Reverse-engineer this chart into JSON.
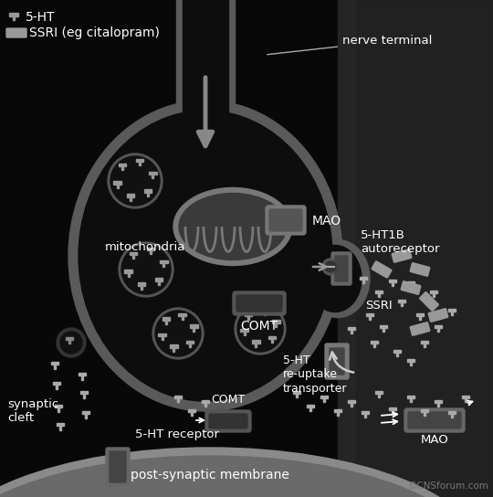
{
  "bg_color": "#080808",
  "text_color": "#ffffff",
  "gray_text": "#cccccc",
  "terminal_border": "#666666",
  "terminal_fill": "#0d0d0d",
  "mito_outer": "#707070",
  "mito_inner": "#3a3a3a",
  "vesicle_border": "#555555",
  "vesicle_fill": "#111111",
  "ht_marker": "#999999",
  "ssri_color": "#888888",
  "membrane_color": "#aaaaaa",
  "post_mem_color": "#b0b0b0",
  "arrow_color": "#999999",
  "right_bg": "#2a2a2a",
  "figsize": [
    5.4,
    5.44
  ],
  "dpi": 100,
  "legend_items": [
    "5-HT",
    "SSRI (eg citalopram)"
  ],
  "labels": {
    "nerve_terminal": "nerve terminal",
    "mitochondria": "mitochondria",
    "MAO_top": "MAO",
    "COMT_inner": "COMT",
    "ht1b": "5-HT1B\nautoreceptor",
    "SSRI": "SSRI",
    "ht_reuptake": "5-HT\nre-uptake\ntransporter",
    "COMT_bottom": "COMT",
    "synaptic_cleft": "synaptic\ncleft",
    "ht_receptor": "5-HT receptor",
    "post_membrane": "post-synaptic membrane",
    "MAO_bottom": "MAO",
    "copyright": "©CNSforum.com"
  }
}
